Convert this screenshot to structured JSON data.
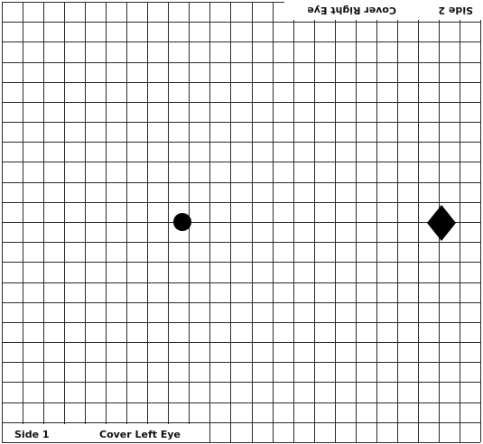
{
  "chart": {
    "side1_label": "Side 1",
    "cover_left_label": "Cover Left Eye",
    "side2_label": "Side 2",
    "cover_right_label": "Cover Right Eye",
    "grid_columns": 23,
    "grid_rows": 22,
    "line_color": "#2a2a2a",
    "mark_color": "#000000",
    "background_color": "#ffffff"
  }
}
